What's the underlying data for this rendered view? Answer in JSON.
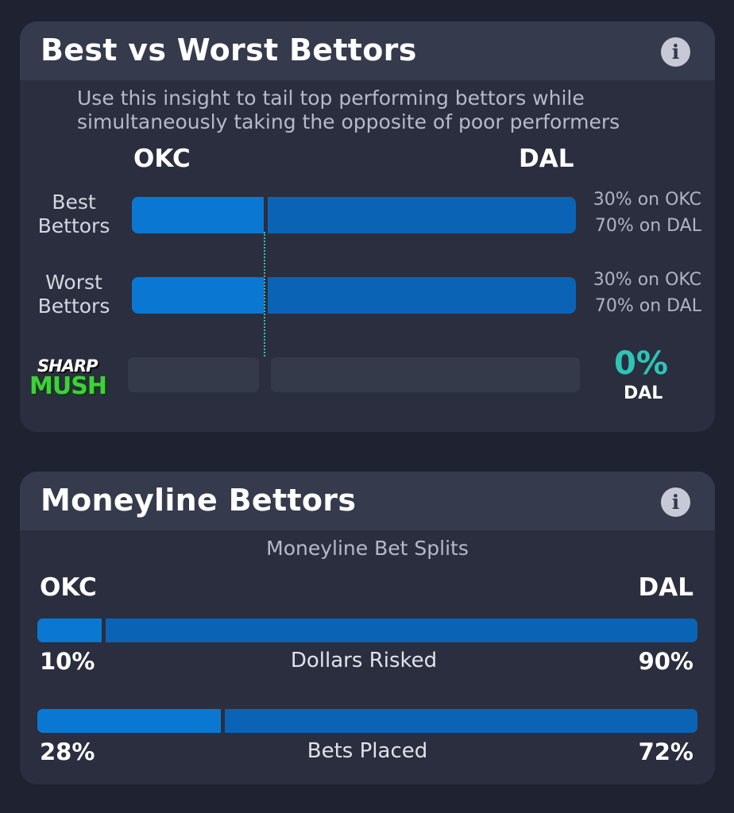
{
  "best_worst": {
    "title": "Best vs Worst Bettors",
    "info_icon": "i",
    "subtitle_line1": "Use this insight to tail top performing bettors while",
    "subtitle_line2": "simultaneously taking the opposite of poor performers",
    "team_left": "OKC",
    "team_right": "DAL",
    "rows": [
      {
        "label_line1": "Best",
        "label_line2": "Bettors",
        "left_pct": 30,
        "pct_line1": "30% on OKC",
        "pct_line2": "70% on DAL"
      },
      {
        "label_line1": "Worst",
        "label_line2": "Bettors",
        "left_pct": 30,
        "pct_line1": "30% on OKC",
        "pct_line2": "70% on DAL"
      }
    ],
    "sharp_mush": {
      "logo_line1": "SHARP",
      "logo_line2": "MUSH",
      "value": "0%",
      "team": "DAL"
    },
    "colors": {
      "teal": "#2ec4b6",
      "blue_light": "#0a78d2",
      "blue_dark": "#0b63b6",
      "mush_green": "#3fd13a"
    }
  },
  "moneyline": {
    "title": "Moneyline Bettors",
    "info_icon": "i",
    "subtitle": "Moneyline Bet Splits",
    "team_left": "OKC",
    "team_right": "DAL",
    "splits": [
      {
        "label": "Dollars Risked",
        "left_pct": 10,
        "left_text": "10%",
        "right_text": "90%"
      },
      {
        "label": "Bets Placed",
        "left_pct": 28,
        "left_text": "28%",
        "right_text": "72%"
      }
    ]
  }
}
